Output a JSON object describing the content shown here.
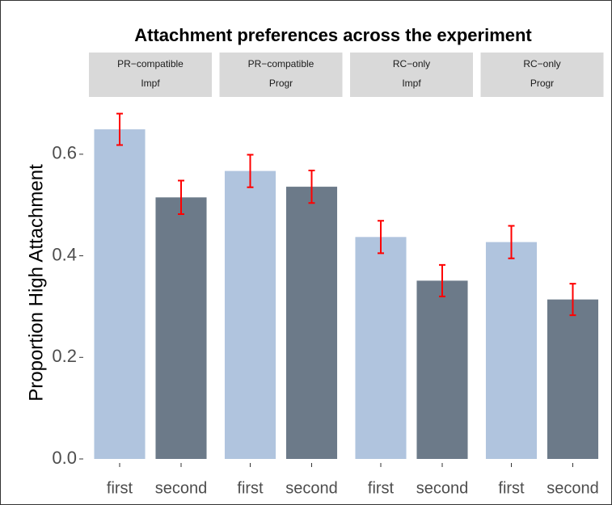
{
  "chart_data": {
    "type": "bar",
    "title": "Attachment preferences across the experiment",
    "y_label": "Proportion High Attachment",
    "categories": [
      "first",
      "second"
    ],
    "colors": [
      "#b0c4de",
      "#6c7a89"
    ],
    "error_color": "#ff0000",
    "ylim": [
      0,
      0.7
    ],
    "yticks": [
      {
        "value": 0,
        "label": "0.0"
      },
      0.2,
      0.4,
      0.6
    ],
    "facets": [
      {
        "label": [
          "PR−compatible",
          "Impf"
        ],
        "values": [
          0.649,
          0.515
        ],
        "errors": [
          0.031,
          0.033
        ]
      },
      {
        "label": [
          "PR−compatible",
          "Progr"
        ],
        "values": [
          0.567,
          0.536
        ],
        "errors": [
          0.032,
          0.032
        ]
      },
      {
        "label": [
          "RC−only",
          "Impf"
        ],
        "values": [
          0.437,
          0.351
        ],
        "errors": [
          0.032,
          0.031
        ]
      },
      {
        "label": [
          "RC−only",
          "Progr"
        ],
        "values": [
          0.427,
          0.314
        ],
        "errors": [
          0.032,
          0.031
        ]
      }
    ]
  }
}
